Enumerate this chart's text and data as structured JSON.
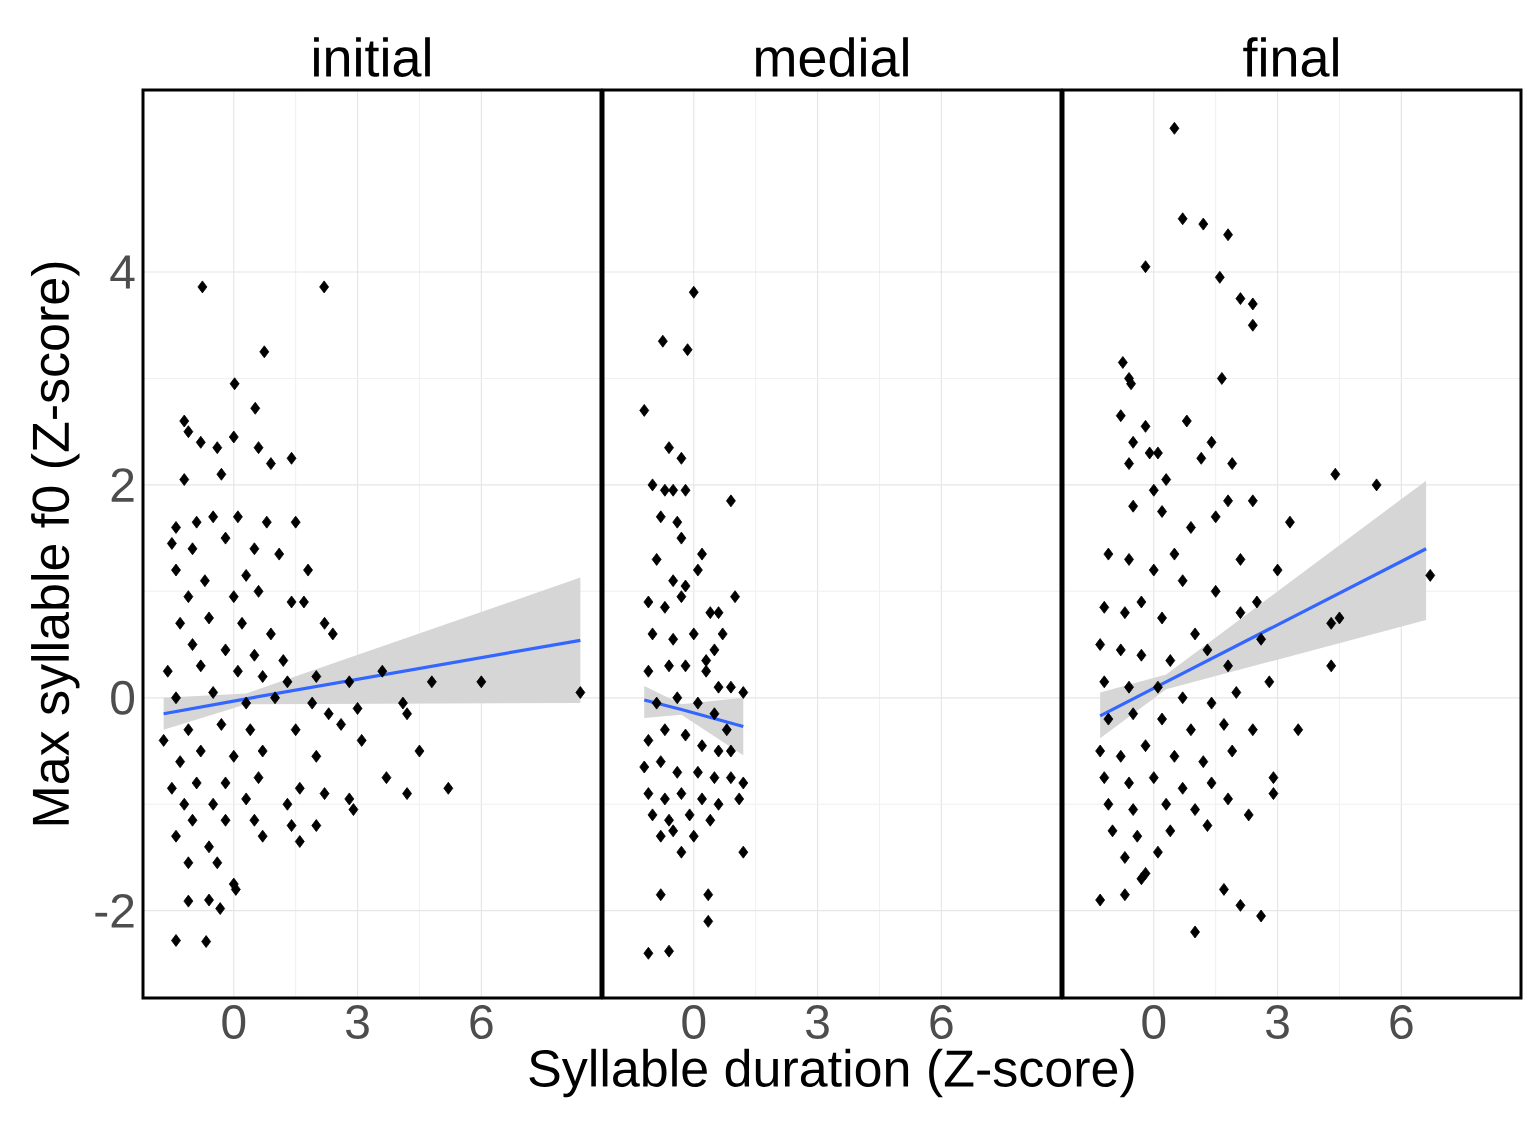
{
  "chart_data": [
    {
      "type": "scatter",
      "title": "initial",
      "ylabel": "Max syllable f0 (Z-score)",
      "xlim": [
        -2.2,
        8.9
      ],
      "ylim": [
        -2.82,
        5.71
      ],
      "xticks": [
        0,
        3,
        6
      ],
      "yticks": [
        -2,
        0,
        2,
        4
      ],
      "grid": true,
      "series": [
        {
          "color": "#000000",
          "marker": "diamond",
          "x": [
            -0.76,
            2.19,
            0.74,
            0.02,
            0.52,
            -1.2,
            -1.1,
            -0.8,
            -0.4,
            0.0,
            0.6,
            1.4,
            0.9,
            -1.2,
            -0.3,
            -1.4,
            -0.9,
            -0.5,
            0.1,
            0.8,
            1.5,
            -1.5,
            -1.0,
            -0.2,
            0.5,
            1.1,
            -1.4,
            -0.7,
            0.3,
            1.8,
            -1.1,
            0.0,
            0.6,
            1.4,
            2.2,
            1.7,
            2.4,
            -1.3,
            -0.6,
            0.2,
            0.9,
            -1.0,
            -0.2,
            0.5,
            1.2,
            -1.6,
            -0.8,
            0.1,
            0.7,
            1.3,
            2.0,
            2.8,
            3.6,
            4.8,
            6.0,
            8.4,
            -1.4,
            -0.5,
            0.3,
            1.0,
            1.9,
            2.3,
            3.0,
            4.1,
            4.2,
            -1.7,
            -1.1,
            -0.3,
            0.4,
            1.5,
            2.6,
            -1.3,
            -0.8,
            0.0,
            0.7,
            3.1,
            4.5,
            2.0,
            -1.5,
            -0.9,
            -0.2,
            0.6,
            1.6,
            3.7,
            2.2,
            -1.2,
            -0.5,
            0.3,
            1.3,
            2.8,
            4.2,
            5.2,
            -1.0,
            -0.2,
            0.5,
            2.0,
            1.6,
            2.9,
            -1.4,
            -0.6,
            0.7,
            1.4,
            -1.1,
            -0.4,
            -1.1,
            -0.33,
            0,
            -0.6,
            0.05,
            -1.4,
            -0.67
          ],
          "values": [
            3.86,
            3.86,
            3.25,
            2.95,
            2.72,
            2.6,
            2.5,
            2.4,
            2.35,
            2.45,
            2.35,
            2.25,
            2.2,
            2.05,
            2.1,
            1.6,
            1.65,
            1.7,
            1.7,
            1.65,
            1.65,
            1.45,
            1.4,
            1.5,
            1.4,
            1.35,
            1.2,
            1.1,
            1.15,
            1.2,
            0.95,
            0.95,
            1.0,
            0.9,
            0.7,
            0.9,
            0.6,
            0.7,
            0.75,
            0.7,
            0.6,
            0.5,
            0.45,
            0.4,
            0.35,
            0.25,
            0.3,
            0.25,
            0.2,
            0.15,
            0.2,
            0.15,
            0.25,
            0.15,
            0.15,
            0.05,
            0.0,
            0.05,
            -0.05,
            0.0,
            -0.05,
            -0.15,
            -0.1,
            -0.05,
            -0.15,
            -0.4,
            -0.3,
            -0.25,
            -0.3,
            -0.3,
            -0.25,
            -0.6,
            -0.5,
            -0.55,
            -0.5,
            -0.4,
            -0.5,
            -0.55,
            -0.85,
            -0.8,
            -0.8,
            -0.75,
            -0.85,
            -0.75,
            -0.9,
            -1.0,
            -1.0,
            -0.95,
            -1.0,
            -0.95,
            -0.9,
            -0.85,
            -1.15,
            -1.15,
            -1.15,
            -1.2,
            -1.35,
            -1.05,
            -1.3,
            -1.4,
            -1.3,
            -1.2,
            -1.55,
            -1.55,
            -1.91,
            -1.98,
            -1.75,
            -1.9,
            -1.8,
            -2.28,
            -2.29
          ]
        },
        {
          "type": "line",
          "marker": "none",
          "color": "#3366ff",
          "x": [
            -1.7,
            0.3,
            8.4
          ],
          "values": [
            -0.15,
            -0.01,
            0.54
          ],
          "lower": [
            -0.3,
            -0.06,
            -0.05
          ],
          "upper": [
            0.0,
            0.04,
            1.13
          ]
        }
      ]
    },
    {
      "type": "scatter",
      "title": "medial",
      "xlabel": "Syllable duration (Z-score)",
      "xlim": [
        -2.2,
        8.9
      ],
      "ylim": [
        -2.82,
        5.71
      ],
      "xticks": [
        0,
        3,
        6
      ],
      "yticks": [
        -2,
        0,
        2,
        4
      ],
      "tick_labels": "x",
      "grid": true,
      "series": [
        {
          "color": "#000000",
          "marker": "diamond",
          "x": [
            0.0,
            -0.75,
            -0.15,
            -1.2,
            -0.6,
            -0.3,
            -1.0,
            -0.7,
            -0.5,
            -0.2,
            0.9,
            -0.8,
            -0.4,
            -0.3,
            0.2,
            -0.9,
            -0.5,
            -0.2,
            0.1,
            -1.1,
            -0.7,
            -0.3,
            0.4,
            0.6,
            1.0,
            -1.0,
            -0.5,
            0.0,
            0.3,
            0.7,
            0.5,
            -1.1,
            -0.6,
            -0.2,
            0.3,
            0.6,
            0.9,
            1.2,
            -0.9,
            -0.4,
            0.1,
            0.5,
            0.8,
            -1.1,
            -0.7,
            -0.2,
            0.2,
            0.6,
            0.9,
            -1.2,
            -0.8,
            -0.4,
            0.1,
            0.5,
            0.9,
            1.2,
            -1.1,
            -0.7,
            -0.3,
            0.2,
            0.6,
            1.1,
            -1.0,
            -0.6,
            -0.1,
            0.4,
            -0.5,
            0.0,
            -0.3,
            -0.8,
            1.2,
            -0.8,
            0.35,
            0.35,
            -1.1,
            -0.6
          ],
          "values": [
            3.81,
            3.35,
            3.27,
            2.7,
            2.35,
            2.25,
            2.0,
            1.95,
            1.95,
            1.95,
            1.85,
            1.7,
            1.65,
            1.5,
            1.35,
            1.3,
            1.1,
            1.05,
            1.2,
            0.9,
            0.85,
            0.95,
            0.8,
            0.8,
            0.95,
            0.6,
            0.55,
            0.6,
            0.35,
            0.6,
            0.45,
            0.25,
            0.3,
            0.3,
            0.25,
            0.1,
            0.1,
            0.05,
            -0.05,
            0.0,
            -0.05,
            -0.15,
            -0.3,
            -0.4,
            -0.3,
            -0.35,
            -0.45,
            -0.5,
            -0.5,
            -0.65,
            -0.6,
            -0.7,
            -0.7,
            -0.75,
            -0.75,
            -0.8,
            -0.9,
            -0.95,
            -0.9,
            -0.95,
            -1.0,
            -0.95,
            -1.1,
            -1.15,
            -1.1,
            -1.15,
            -1.25,
            -1.3,
            -1.45,
            -1.3,
            -1.45,
            -1.85,
            -1.85,
            -2.1,
            -2.4,
            -2.38
          ]
        },
        {
          "type": "line",
          "marker": "none",
          "color": "#3366ff",
          "x": [
            -1.2,
            -0.3,
            1.2
          ],
          "values": [
            -0.02,
            -0.11,
            -0.27
          ],
          "lower": [
            -0.19,
            -0.16,
            -0.54
          ],
          "upper": [
            0.11,
            -0.06,
            0.0
          ]
        }
      ]
    },
    {
      "type": "scatter",
      "title": "final",
      "xlim": [
        -2.2,
        8.9
      ],
      "ylim": [
        -2.82,
        5.71
      ],
      "xticks": [
        0,
        3,
        6
      ],
      "yticks": [
        -2,
        0,
        2,
        4
      ],
      "tick_labels": "x",
      "grid": true,
      "series": [
        {
          "color": "#000000",
          "marker": "diamond",
          "x": [
            0.5,
            0.7,
            1.2,
            -0.2,
            1.8,
            1.6,
            2.1,
            2.4,
            2.4,
            -0.75,
            -0.6,
            -0.55,
            1.65,
            -0.8,
            0.8,
            1.4,
            -0.2,
            -0.5,
            -0.1,
            0.1,
            1.9,
            -0.6,
            1.15,
            0.3,
            0.0,
            1.8,
            2.4,
            -0.5,
            0.2,
            3.3,
            1.5,
            0.9,
            4.4,
            5.4,
            -1.1,
            -0.6,
            0.0,
            0.5,
            2.1,
            0.7,
            1.5,
            3.0,
            2.5,
            -1.2,
            -0.7,
            -0.3,
            0.2,
            1.0,
            2.1,
            2.6,
            4.3,
            4.5,
            6.7,
            -1.3,
            -0.8,
            -0.3,
            0.4,
            1.3,
            1.8,
            4.3,
            -1.2,
            -0.6,
            0.1,
            0.7,
            1.4,
            2.0,
            2.8,
            -1.1,
            -0.5,
            0.2,
            0.9,
            1.7,
            2.4,
            3.5,
            -1.3,
            -0.8,
            -0.2,
            0.5,
            1.2,
            1.9,
            -1.2,
            -0.6,
            0.0,
            0.7,
            1.4,
            2.9,
            -1.1,
            -0.5,
            0.3,
            1.0,
            1.8,
            2.9,
            2.3,
            -1.0,
            -0.4,
            0.4,
            1.3,
            -0.7,
            0.1,
            -0.2,
            -1.3,
            -0.7,
            -0.3,
            1.7,
            2.1,
            2.6,
            1.0
          ],
          "values": [
            5.35,
            4.5,
            4.45,
            4.05,
            4.35,
            3.95,
            3.75,
            3.7,
            3.5,
            3.15,
            3.0,
            2.95,
            3.0,
            2.65,
            2.6,
            2.4,
            2.55,
            2.4,
            2.3,
            2.3,
            2.2,
            2.2,
            2.25,
            2.05,
            1.95,
            1.85,
            1.85,
            1.8,
            1.75,
            1.65,
            1.7,
            1.6,
            2.1,
            2.0,
            1.35,
            1.3,
            1.2,
            1.35,
            1.3,
            1.1,
            1.0,
            1.2,
            0.9,
            0.85,
            0.8,
            0.9,
            0.75,
            0.6,
            0.8,
            0.55,
            0.7,
            0.75,
            1.15,
            0.5,
            0.45,
            0.4,
            0.35,
            0.45,
            0.3,
            0.3,
            0.15,
            0.1,
            0.1,
            0.0,
            -0.05,
            0.05,
            0.15,
            -0.2,
            -0.15,
            -0.2,
            -0.3,
            -0.25,
            -0.3,
            -0.3,
            -0.5,
            -0.55,
            -0.45,
            -0.55,
            -0.6,
            -0.5,
            -0.75,
            -0.8,
            -0.75,
            -0.85,
            -0.8,
            -0.75,
            -1.0,
            -1.05,
            -1.0,
            -1.05,
            -0.95,
            -0.9,
            -1.1,
            -1.25,
            -1.3,
            -1.25,
            -1.2,
            -1.5,
            -1.45,
            -1.65,
            -1.9,
            -1.85,
            -1.7,
            -1.8,
            -1.95,
            -2.05,
            -2.2
          ]
        },
        {
          "type": "line",
          "marker": "none",
          "color": "#3366ff",
          "x": [
            -1.3,
            0.3,
            6.6
          ],
          "values": [
            -0.17,
            0.15,
            1.4
          ],
          "lower": [
            -0.38,
            0.08,
            0.73
          ],
          "upper": [
            0.05,
            0.22,
            2.04
          ]
        }
      ]
    }
  ]
}
